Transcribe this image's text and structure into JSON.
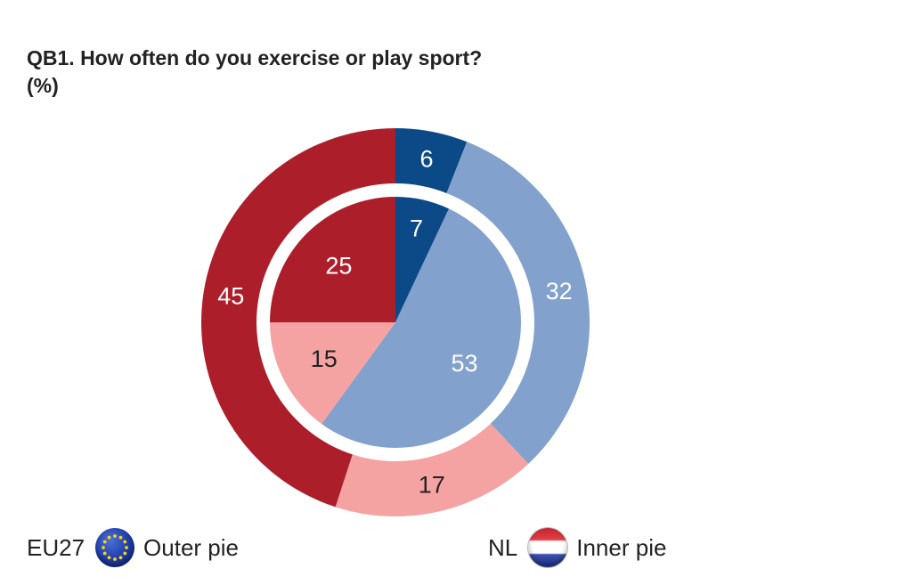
{
  "title_line1": "QB1. How often do you exercise or play sport?",
  "title_line2": "(%)",
  "chart_data": {
    "type": "pie",
    "subtype": "nested-donut",
    "categories_order": "clockwise from top",
    "outer": {
      "legend_code": "EU27",
      "legend_label": "Outer pie",
      "values": [
        6,
        32,
        17,
        45
      ],
      "colors": [
        "#0b4a86",
        "#82a1cc",
        "#f4a3a2",
        "#ad1e2b"
      ],
      "label_colors": [
        "#ffffff",
        "#ffffff",
        "#222222",
        "#ffffff"
      ]
    },
    "inner": {
      "legend_code": "NL",
      "legend_label": "Inner pie",
      "values": [
        7,
        53,
        15,
        25
      ],
      "colors": [
        "#0b4a86",
        "#82a1cc",
        "#f4a3a2",
        "#ad1e2b"
      ],
      "label_colors": [
        "#ffffff",
        "#ffffff",
        "#222222",
        "#ffffff"
      ]
    }
  }
}
